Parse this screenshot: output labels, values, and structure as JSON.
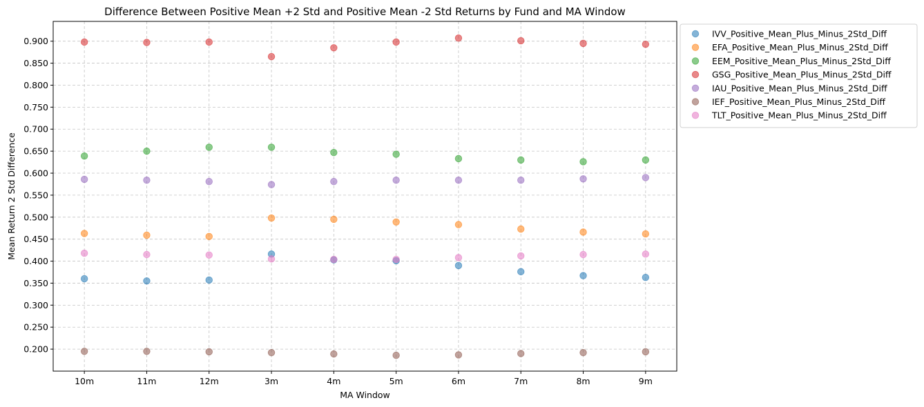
{
  "chart_data": {
    "type": "scatter",
    "title": "Difference Between Positive Mean +2 Std and Positive Mean -2 Std Returns by Fund and MA Window",
    "xlabel": "MA Window",
    "ylabel": "Mean Return 2 Std Difference",
    "categories": [
      "10m",
      "11m",
      "12m",
      "3m",
      "4m",
      "5m",
      "6m",
      "7m",
      "8m",
      "9m"
    ],
    "ylim": [
      0.15,
      0.945
    ],
    "yticks": [
      "0.200",
      "0.250",
      "0.300",
      "0.350",
      "0.400",
      "0.450",
      "0.500",
      "0.550",
      "0.600",
      "0.650",
      "0.700",
      "0.750",
      "0.800",
      "0.850",
      "0.900"
    ],
    "grid": true,
    "legend_position": "outside-top-right",
    "series": [
      {
        "name": "IVV_Positive_Mean_Plus_Minus_2Std_Diff",
        "color": "#1f77b4",
        "values": [
          0.36,
          0.355,
          0.357,
          0.416,
          0.403,
          0.401,
          0.39,
          0.376,
          0.367,
          0.363
        ]
      },
      {
        "name": "EFA_Positive_Mean_Plus_Minus_2Std_Diff",
        "color": "#ff7f0e",
        "values": [
          0.463,
          0.459,
          0.456,
          0.498,
          0.495,
          0.489,
          0.483,
          0.473,
          0.466,
          0.462
        ]
      },
      {
        "name": "EEM_Positive_Mean_Plus_Minus_2Std_Diff",
        "color": "#2ca02c",
        "values": [
          0.639,
          0.65,
          0.659,
          0.659,
          0.647,
          0.643,
          0.633,
          0.63,
          0.626,
          0.63
        ]
      },
      {
        "name": "GSG_Positive_Mean_Plus_Minus_2Std_Diff",
        "color": "#d62728",
        "values": [
          0.898,
          0.897,
          0.898,
          0.865,
          0.885,
          0.898,
          0.907,
          0.901,
          0.895,
          0.893
        ]
      },
      {
        "name": "IAU_Positive_Mean_Plus_Minus_2Std_Diff",
        "color": "#9467bd",
        "values": [
          0.586,
          0.584,
          0.581,
          0.574,
          0.581,
          0.584,
          0.584,
          0.584,
          0.587,
          0.59
        ]
      },
      {
        "name": "IEF_Positive_Mean_Plus_Minus_2Std_Diff",
        "color": "#8c564b",
        "values": [
          0.195,
          0.195,
          0.194,
          0.192,
          0.189,
          0.186,
          0.187,
          0.19,
          0.192,
          0.194
        ]
      },
      {
        "name": "TLT_Positive_Mean_Plus_Minus_2Std_Diff",
        "color": "#e377c2",
        "values": [
          0.418,
          0.415,
          0.414,
          0.405,
          0.404,
          0.404,
          0.408,
          0.412,
          0.415,
          0.416
        ]
      }
    ]
  }
}
